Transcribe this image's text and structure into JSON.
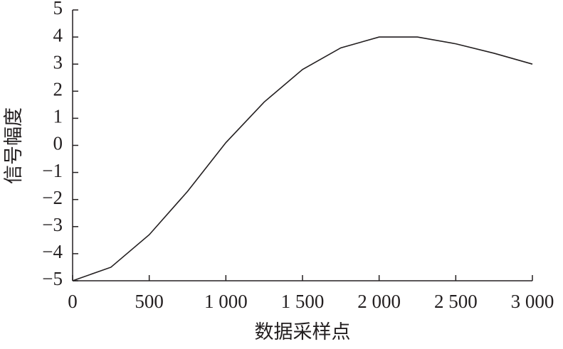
{
  "chart_data": {
    "type": "line",
    "x_label": "数据采样点",
    "y_label": "信号幅度",
    "x": [
      0,
      250,
      500,
      750,
      1000,
      1250,
      1500,
      1750,
      2000,
      2250,
      2500,
      2750,
      3000
    ],
    "series": [
      {
        "color": "#231f20",
        "values": [
          -5,
          -4.5,
          -3.3,
          -1.7,
          0.1,
          1.6,
          2.8,
          3.6,
          4.0,
          4.0,
          3.75,
          3.4,
          3.0
        ]
      }
    ],
    "xlim": [
      0,
      3000
    ],
    "xticks": [
      0,
      500,
      {
        "value": 1000,
        "label": "1 000"
      },
      {
        "value": 1500,
        "label": "1 500"
      },
      {
        "value": 2000,
        "label": "2 000"
      },
      {
        "value": 2500,
        "label": "2 500"
      },
      {
        "value": 3000,
        "label": "3 000"
      }
    ],
    "ylim": [
      -5,
      5
    ],
    "yticks": [
      {
        "value": -5,
        "label": "−5"
      },
      {
        "value": -4,
        "label": "−4"
      },
      {
        "value": -3,
        "label": "−3"
      },
      {
        "value": -2,
        "label": "−2"
      },
      {
        "value": -1,
        "label": "−1"
      },
      0,
      1,
      2,
      3,
      4,
      5
    ]
  }
}
